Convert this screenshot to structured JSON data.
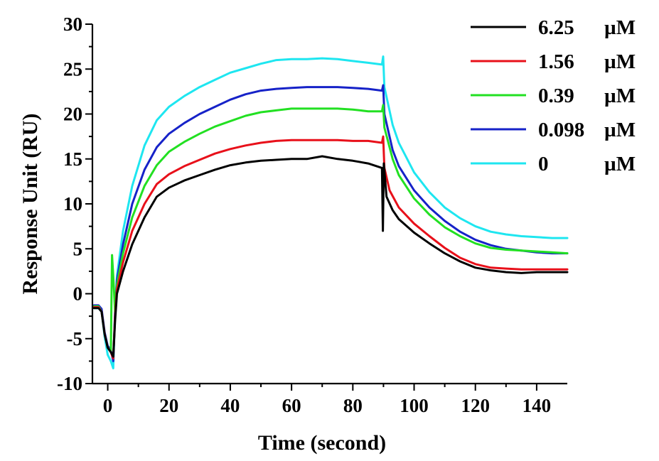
{
  "chart_data": {
    "type": "line",
    "xlabel": "Time (second)",
    "ylabel": "Response Unit (RU)",
    "xlim": [
      -5,
      150
    ],
    "ylim": [
      -10,
      30
    ],
    "x_ticks": [
      "0",
      "20",
      "40",
      "60",
      "80",
      "100",
      "120",
      "140"
    ],
    "y_ticks": [
      "-10",
      "-5",
      "0",
      "5",
      "10",
      "15",
      "20",
      "25",
      "30"
    ],
    "legend_position": "top-right",
    "series": [
      {
        "name": "6.25",
        "unit": "µM",
        "color": "#000000",
        "points": [
          [
            -4.5,
            -1.6
          ],
          [
            -3,
            -1.6
          ],
          [
            -2,
            -2.0
          ],
          [
            -1,
            -4.5
          ],
          [
            0,
            -6.0
          ],
          [
            1,
            -6.5
          ],
          [
            1.8,
            -7.0
          ],
          [
            2.4,
            -3.0
          ],
          [
            3,
            0
          ],
          [
            5,
            2.5
          ],
          [
            8,
            5.5
          ],
          [
            12,
            8.5
          ],
          [
            16,
            10.8
          ],
          [
            20,
            11.8
          ],
          [
            25,
            12.6
          ],
          [
            30,
            13.2
          ],
          [
            35,
            13.8
          ],
          [
            40,
            14.3
          ],
          [
            45,
            14.6
          ],
          [
            50,
            14.8
          ],
          [
            55,
            14.9
          ],
          [
            60,
            15.0
          ],
          [
            65,
            15.0
          ],
          [
            70,
            15.3
          ],
          [
            75,
            15.0
          ],
          [
            80,
            14.8
          ],
          [
            85,
            14.5
          ],
          [
            89.5,
            14.0
          ],
          [
            89.8,
            7.0
          ],
          [
            90.1,
            14.5
          ],
          [
            91,
            10.8
          ],
          [
            93,
            9.3
          ],
          [
            95,
            8.3
          ],
          [
            100,
            6.8
          ],
          [
            105,
            5.6
          ],
          [
            110,
            4.5
          ],
          [
            115,
            3.6
          ],
          [
            120,
            2.9
          ],
          [
            125,
            2.6
          ],
          [
            130,
            2.4
          ],
          [
            135,
            2.3
          ],
          [
            140,
            2.4
          ],
          [
            145,
            2.4
          ],
          [
            150,
            2.4
          ]
        ]
      },
      {
        "name": "1.56",
        "unit": "µM",
        "color": "#e8101a",
        "points": [
          [
            -4.5,
            -1.5
          ],
          [
            -3,
            -1.5
          ],
          [
            -2,
            -2.0
          ],
          [
            -1,
            -4.5
          ],
          [
            0,
            -6.0
          ],
          [
            1,
            -6.5
          ],
          [
            1.8,
            -7.2
          ],
          [
            2.4,
            -2.5
          ],
          [
            3,
            0.5
          ],
          [
            5,
            3.5
          ],
          [
            8,
            7.0
          ],
          [
            12,
            10.0
          ],
          [
            16,
            12.2
          ],
          [
            20,
            13.3
          ],
          [
            25,
            14.2
          ],
          [
            30,
            14.9
          ],
          [
            35,
            15.6
          ],
          [
            40,
            16.1
          ],
          [
            45,
            16.5
          ],
          [
            50,
            16.8
          ],
          [
            55,
            17.0
          ],
          [
            60,
            17.1
          ],
          [
            65,
            17.1
          ],
          [
            70,
            17.1
          ],
          [
            75,
            17.1
          ],
          [
            80,
            17.0
          ],
          [
            85,
            17.0
          ],
          [
            89.5,
            16.8
          ],
          [
            89.9,
            17.5
          ],
          [
            90.3,
            14.0
          ],
          [
            92,
            11.5
          ],
          [
            95,
            9.6
          ],
          [
            100,
            7.8
          ],
          [
            105,
            6.4
          ],
          [
            110,
            5.1
          ],
          [
            115,
            4.0
          ],
          [
            120,
            3.3
          ],
          [
            125,
            2.9
          ],
          [
            130,
            2.8
          ],
          [
            135,
            2.7
          ],
          [
            140,
            2.7
          ],
          [
            145,
            2.7
          ],
          [
            150,
            2.7
          ]
        ]
      },
      {
        "name": "0.39",
        "unit": "µM",
        "color": "#22e022",
        "points": [
          [
            -4.5,
            -1.4
          ],
          [
            -3,
            -1.4
          ],
          [
            -2,
            -2.0
          ],
          [
            -1,
            -4.5
          ],
          [
            0,
            -6.0
          ],
          [
            1,
            -6.5
          ],
          [
            1.4,
            4.3
          ],
          [
            1.8,
            2.0
          ],
          [
            2.4,
            -2.0
          ],
          [
            3,
            1.0
          ],
          [
            5,
            4.5
          ],
          [
            8,
            8.5
          ],
          [
            12,
            12.0
          ],
          [
            16,
            14.3
          ],
          [
            20,
            15.8
          ],
          [
            25,
            16.9
          ],
          [
            30,
            17.8
          ],
          [
            35,
            18.6
          ],
          [
            40,
            19.2
          ],
          [
            45,
            19.8
          ],
          [
            50,
            20.2
          ],
          [
            55,
            20.4
          ],
          [
            60,
            20.6
          ],
          [
            65,
            20.6
          ],
          [
            70,
            20.6
          ],
          [
            75,
            20.6
          ],
          [
            80,
            20.5
          ],
          [
            85,
            20.3
          ],
          [
            89.5,
            20.3
          ],
          [
            89.9,
            21.0
          ],
          [
            90.3,
            18.5
          ],
          [
            93,
            15.0
          ],
          [
            95,
            13.2
          ],
          [
            100,
            10.6
          ],
          [
            105,
            8.8
          ],
          [
            110,
            7.4
          ],
          [
            115,
            6.4
          ],
          [
            120,
            5.6
          ],
          [
            125,
            5.1
          ],
          [
            130,
            4.9
          ],
          [
            135,
            4.8
          ],
          [
            140,
            4.7
          ],
          [
            145,
            4.6
          ],
          [
            150,
            4.5
          ]
        ]
      },
      {
        "name": "0.098",
        "unit": "µM",
        "color": "#1622c8",
        "points": [
          [
            -4.5,
            -1.3
          ],
          [
            -3,
            -1.3
          ],
          [
            -2,
            -1.7
          ],
          [
            -1,
            -4.3
          ],
          [
            0,
            -5.8
          ],
          [
            1,
            -6.3
          ],
          [
            1.8,
            -7.5
          ],
          [
            2.4,
            -2.0
          ],
          [
            3,
            1.5
          ],
          [
            5,
            5.5
          ],
          [
            8,
            10.0
          ],
          [
            12,
            13.8
          ],
          [
            16,
            16.3
          ],
          [
            20,
            17.8
          ],
          [
            25,
            19.0
          ],
          [
            30,
            20.0
          ],
          [
            35,
            20.8
          ],
          [
            40,
            21.6
          ],
          [
            45,
            22.2
          ],
          [
            50,
            22.6
          ],
          [
            55,
            22.8
          ],
          [
            60,
            22.9
          ],
          [
            65,
            23.0
          ],
          [
            70,
            23.0
          ],
          [
            75,
            23.0
          ],
          [
            80,
            22.9
          ],
          [
            85,
            22.8
          ],
          [
            89.5,
            22.6
          ],
          [
            89.9,
            23.2
          ],
          [
            90.3,
            20.0
          ],
          [
            93,
            16.0
          ],
          [
            95,
            14.2
          ],
          [
            100,
            11.5
          ],
          [
            105,
            9.6
          ],
          [
            110,
            8.1
          ],
          [
            115,
            6.9
          ],
          [
            120,
            6.0
          ],
          [
            125,
            5.4
          ],
          [
            130,
            5.0
          ],
          [
            135,
            4.8
          ],
          [
            140,
            4.6
          ],
          [
            145,
            4.5
          ],
          [
            150,
            4.5
          ]
        ]
      },
      {
        "name": "0",
        "unit": "µM",
        "color": "#1ee6f0",
        "points": [
          [
            -4.5,
            -1.6
          ],
          [
            -3,
            -1.6
          ],
          [
            -2,
            -2.0
          ],
          [
            -1,
            -4.8
          ],
          [
            0,
            -6.8
          ],
          [
            1,
            -7.5
          ],
          [
            1.8,
            -8.3
          ],
          [
            2.4,
            -2.0
          ],
          [
            3,
            2.0
          ],
          [
            5,
            7.0
          ],
          [
            8,
            12.0
          ],
          [
            12,
            16.5
          ],
          [
            16,
            19.3
          ],
          [
            20,
            20.8
          ],
          [
            25,
            22.0
          ],
          [
            30,
            23.0
          ],
          [
            35,
            23.8
          ],
          [
            40,
            24.6
          ],
          [
            45,
            25.1
          ],
          [
            50,
            25.6
          ],
          [
            55,
            26.0
          ],
          [
            60,
            26.1
          ],
          [
            65,
            26.1
          ],
          [
            70,
            26.2
          ],
          [
            75,
            26.1
          ],
          [
            80,
            25.9
          ],
          [
            85,
            25.7
          ],
          [
            89.5,
            25.5
          ],
          [
            89.9,
            26.4
          ],
          [
            90.3,
            23.0
          ],
          [
            93,
            18.8
          ],
          [
            95,
            16.8
          ],
          [
            100,
            13.5
          ],
          [
            105,
            11.3
          ],
          [
            110,
            9.6
          ],
          [
            115,
            8.4
          ],
          [
            120,
            7.5
          ],
          [
            125,
            6.9
          ],
          [
            130,
            6.6
          ],
          [
            135,
            6.4
          ],
          [
            140,
            6.3
          ],
          [
            145,
            6.2
          ],
          [
            150,
            6.2
          ]
        ]
      }
    ]
  }
}
